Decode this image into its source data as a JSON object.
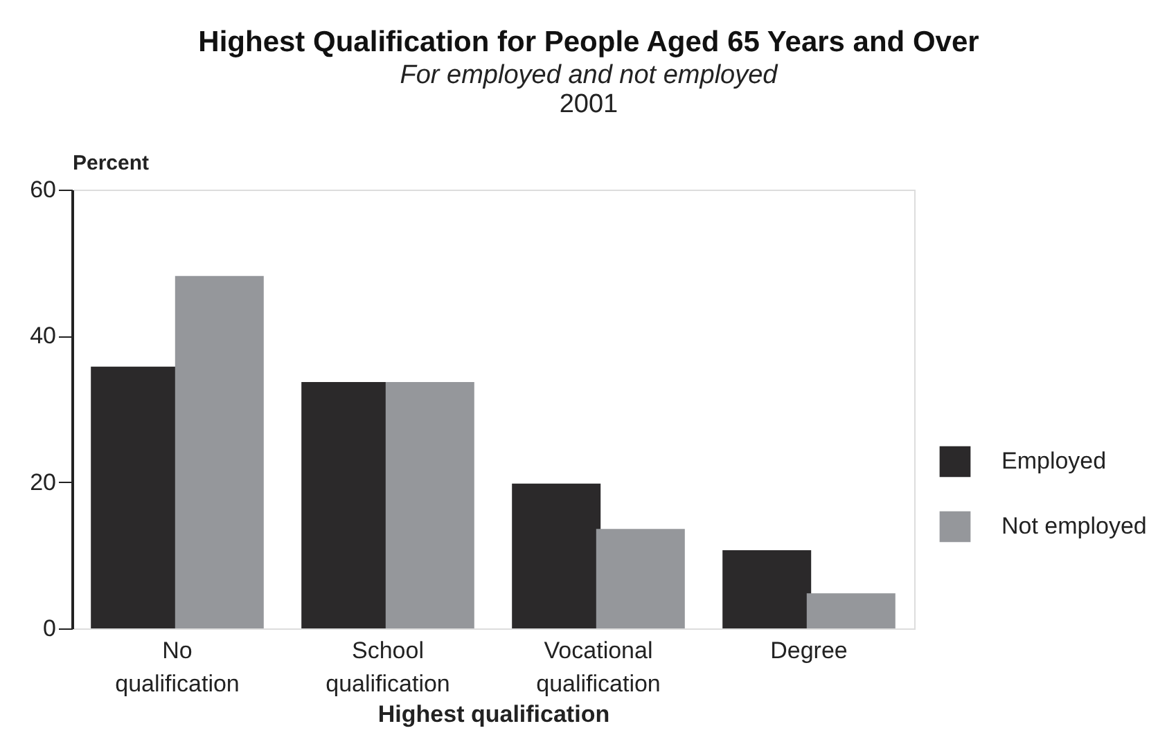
{
  "chart_data": {
    "type": "bar",
    "title": "Highest Qualification for People Aged 65 Years and Over",
    "subtitle": "For employed and not employed",
    "annotations": [
      "2001"
    ],
    "xlabel": "Highest qualification",
    "ylabel": "Percent",
    "categories": [
      "No qualification",
      "School qualification",
      "Vocational qualification",
      "Degree"
    ],
    "series": [
      {
        "name": "Employed",
        "color": "#2b292a",
        "values": [
          35.8,
          33.7,
          19.8,
          10.7
        ]
      },
      {
        "name": "Not employed",
        "color": "#95979b",
        "values": [
          48.2,
          33.7,
          13.6,
          4.8
        ]
      }
    ],
    "ylim": [
      0,
      60
    ],
    "yticks": [
      0,
      20,
      40,
      60
    ],
    "grid": false,
    "legend": "right"
  }
}
